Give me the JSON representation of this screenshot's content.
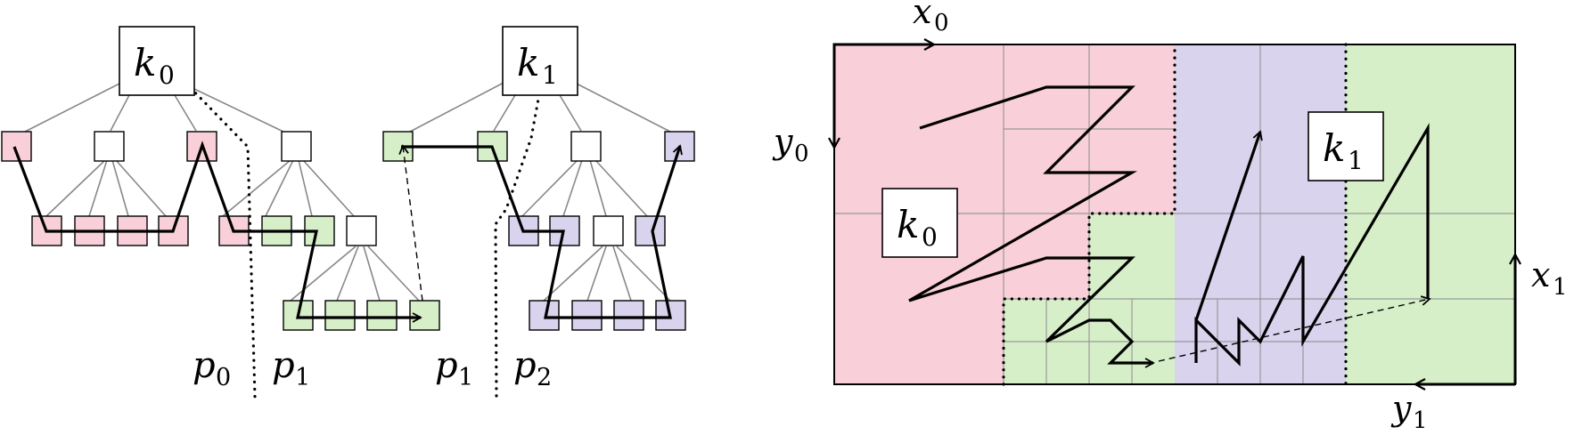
{
  "colors": {
    "pink": "#F9CFD9",
    "green": "#D7EFC8",
    "lavender": "#D9D3EE",
    "tree_edge": "#888888",
    "grid_line": "#999999",
    "path": "#000000"
  },
  "left_tree": {
    "roots": [
      {
        "letter": "k",
        "sub": "0"
      },
      {
        "letter": "k",
        "sub": "1"
      }
    ],
    "partition_labels": [
      {
        "letter": "p",
        "sub": "0"
      },
      {
        "letter": "p",
        "sub": "1"
      },
      {
        "letter": "p",
        "sub": "1"
      },
      {
        "letter": "p",
        "sub": "2"
      }
    ]
  },
  "right_grid": {
    "axis_labels": {
      "x0": {
        "letter": "x",
        "sub": "0"
      },
      "y0": {
        "letter": "y",
        "sub": "0"
      },
      "x1": {
        "letter": "x",
        "sub": "1"
      },
      "y1": {
        "letter": "y",
        "sub": "1"
      }
    },
    "key_labels": [
      {
        "letter": "k",
        "sub": "0"
      },
      {
        "letter": "k",
        "sub": "1"
      }
    ]
  }
}
